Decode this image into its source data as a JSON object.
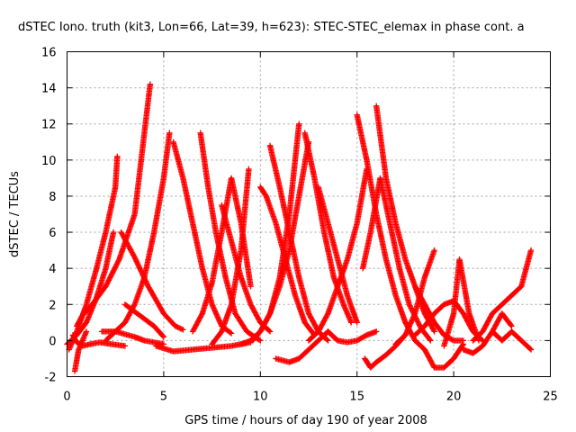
{
  "chart_data": {
    "type": "scatter",
    "title": "dSTEC Iono. truth (kit3, Lon=66, Lat=39, h=623): STEC-STEC_elemax in phase cont. a",
    "xlabel": "GPS time / hours of day 190 of year 2008",
    "ylabel": "dSTEC  / TECUs",
    "xlim": [
      0,
      25
    ],
    "ylim": [
      -2,
      16
    ],
    "xticks": [
      "0",
      "5",
      "10",
      "15",
      "20",
      "25"
    ],
    "yticks": [
      "-2",
      "0",
      "2",
      "4",
      "6",
      "8",
      "10",
      "12",
      "14",
      "16"
    ],
    "grid": true,
    "marker": "+",
    "color": "#ff0000",
    "series": [
      {
        "x": [
          0.0,
          0.5,
          1.0,
          1.5,
          2.0,
          2.4
        ],
        "y": [
          -0.2,
          0.3,
          1.0,
          2.3,
          4.0,
          6.0
        ]
      },
      {
        "x": [
          0.1,
          0.5,
          1.0,
          1.5,
          2.0,
          2.5,
          2.6
        ],
        "y": [
          -0.5,
          0.5,
          2.0,
          3.9,
          6.0,
          8.5,
          10.2
        ]
      },
      {
        "x": [
          0.3,
          0.5,
          0.8,
          1.2,
          1.7,
          2.3,
          3.0
        ],
        "y": [
          0.3,
          -0.1,
          -0.3,
          -0.2,
          -0.1,
          -0.2,
          -0.3
        ]
      },
      {
        "x": [
          0.4,
          0.6,
          1.0
        ],
        "y": [
          -1.7,
          -0.5,
          0.5
        ]
      },
      {
        "x": [
          0.5,
          0.8,
          1.3,
          2.0,
          2.7,
          3.5,
          4.3
        ],
        "y": [
          0.8,
          1.4,
          2.0,
          3.0,
          4.5,
          7.0,
          14.2
        ]
      },
      {
        "x": [
          2.8,
          3.5,
          4.2,
          5.0,
          5.6,
          6.0
        ],
        "y": [
          6.0,
          4.6,
          3.0,
          1.5,
          0.8,
          0.6
        ]
      },
      {
        "x": [
          2.0,
          2.5,
          3.0,
          3.5,
          4.0,
          4.5,
          5.0,
          5.3
        ],
        "y": [
          0.0,
          0.5,
          1.0,
          2.0,
          3.5,
          6.0,
          9.0,
          11.5
        ]
      },
      {
        "x": [
          1.8,
          2.5,
          3.5,
          4.0,
          4.5,
          5.0
        ],
        "y": [
          0.5,
          0.5,
          0.2,
          0.0,
          -0.1,
          -0.2
        ]
      },
      {
        "x": [
          3.0,
          4.0,
          4.5,
          5.0
        ],
        "y": [
          2.0,
          1.2,
          0.8,
          0.2
        ]
      },
      {
        "x": [
          5.5,
          6.0,
          6.5,
          7.0,
          7.5,
          8.0,
          8.5
        ],
        "y": [
          11.0,
          9.0,
          6.5,
          4.0,
          2.0,
          0.8,
          0.4
        ]
      },
      {
        "x": [
          4.6,
          5.5,
          6.5,
          7.5,
          8.5,
          9.5
        ],
        "y": [
          -0.3,
          -0.6,
          -0.5,
          -0.4,
          -0.3,
          -0.1
        ]
      },
      {
        "x": [
          6.5,
          7.0,
          7.5,
          8.0,
          8.5,
          9.0,
          9.5
        ],
        "y": [
          0.5,
          1.5,
          3.2,
          6.0,
          9.0,
          6.5,
          3.0
        ]
      },
      {
        "x": [
          6.9,
          7.3,
          7.7,
          8.2,
          8.7,
          9.3,
          10.0
        ],
        "y": [
          11.5,
          8.5,
          6.0,
          3.5,
          1.5,
          0.5,
          0.0
        ]
      },
      {
        "x": [
          7.5,
          8.0,
          8.5,
          9.0,
          9.4
        ],
        "y": [
          -0.2,
          0.5,
          2.0,
          5.0,
          9.5
        ]
      },
      {
        "x": [
          8.0,
          8.5,
          9.0,
          9.5,
          10.0,
          10.5
        ],
        "y": [
          7.5,
          5.5,
          3.5,
          2.0,
          1.0,
          0.5
        ]
      },
      {
        "x": [
          9.0,
          9.5,
          10.0,
          10.5,
          11.0,
          11.5,
          12.0
        ],
        "y": [
          -0.2,
          0.0,
          0.5,
          1.5,
          3.5,
          7.0,
          12.0
        ]
      },
      {
        "x": [
          9.6,
          10.0,
          10.5,
          11.0,
          11.5,
          12.0,
          12.5
        ],
        "y": [
          0.0,
          0.5,
          1.5,
          3.0,
          5.0,
          8.0,
          11.0
        ]
      },
      {
        "x": [
          10.0,
          10.3,
          10.8,
          11.3,
          11.8,
          12.3,
          12.8
        ],
        "y": [
          8.5,
          8.0,
          6.5,
          4.5,
          2.5,
          1.0,
          0.3
        ]
      },
      {
        "x": [
          10.5,
          11.0,
          11.5,
          12.0,
          12.5,
          13.0,
          13.5
        ],
        "y": [
          10.8,
          8.5,
          6.0,
          3.5,
          1.5,
          0.5,
          0.0
        ]
      },
      {
        "x": [
          10.8,
          11.5,
          12.0,
          12.5,
          13.0,
          13.5
        ],
        "y": [
          -1.0,
          -1.2,
          -1.0,
          -0.5,
          0.0,
          0.5
        ]
      },
      {
        "x": [
          12.3,
          12.8,
          13.3,
          13.8,
          14.3,
          14.7
        ],
        "y": [
          11.5,
          9.0,
          6.0,
          3.5,
          2.0,
          1.0
        ]
      },
      {
        "x": [
          13.0,
          13.5,
          14.0,
          14.5,
          15.0
        ],
        "y": [
          8.5,
          6.5,
          4.5,
          2.5,
          1.0
        ]
      },
      {
        "x": [
          12.5,
          13.0,
          13.5,
          14.0,
          14.5,
          15.0,
          15.5
        ],
        "y": [
          0.0,
          0.5,
          1.5,
          3.0,
          4.5,
          6.5,
          9.5
        ]
      },
      {
        "x": [
          13.5,
          14.0,
          14.5,
          15.0,
          15.5,
          16.0
        ],
        "y": [
          0.5,
          0.0,
          -0.1,
          0.0,
          0.3,
          0.5
        ]
      },
      {
        "x": [
          15.0,
          15.5,
          16.0,
          16.5,
          17.0,
          17.5,
          18.0,
          18.5
        ],
        "y": [
          12.5,
          10.0,
          7.0,
          4.5,
          2.5,
          1.0,
          0.0,
          -0.5
        ]
      },
      {
        "x": [
          15.4,
          15.7,
          16.0,
          16.5,
          17.0,
          17.5
        ],
        "y": [
          -1.0,
          -1.5,
          -1.2,
          -0.8,
          -0.3,
          0.3
        ]
      },
      {
        "x": [
          15.3,
          15.7,
          16.2,
          16.7,
          17.2,
          17.7,
          18.3,
          18.8
        ],
        "y": [
          4.0,
          6.0,
          9.0,
          6.5,
          4.0,
          2.0,
          0.7,
          0.0
        ]
      },
      {
        "x": [
          16.0,
          16.5,
          17.0,
          17.5,
          18.0,
          18.5,
          19.0
        ],
        "y": [
          13.0,
          9.0,
          6.5,
          4.5,
          3.0,
          1.5,
          0.5
        ]
      },
      {
        "x": [
          17.0,
          17.5,
          18.0,
          18.5,
          19.0
        ],
        "y": [
          -0.2,
          0.3,
          1.5,
          3.5,
          5.0
        ]
      },
      {
        "x": [
          18.0,
          18.5,
          19.0,
          19.5,
          20.0,
          20.5
        ],
        "y": [
          3.0,
          2.0,
          1.0,
          0.3,
          0.0,
          0.0
        ]
      },
      {
        "x": [
          18.5,
          19.0,
          19.5,
          20.0,
          20.5
        ],
        "y": [
          -0.5,
          -1.5,
          -1.5,
          -1.0,
          -0.2
        ]
      },
      {
        "x": [
          18.0,
          18.5,
          19.0,
          19.5,
          20.0,
          20.5,
          21.0,
          21.5
        ],
        "y": [
          0.3,
          0.8,
          1.5,
          2.0,
          2.2,
          1.5,
          0.5,
          0.0
        ]
      },
      {
        "x": [
          19.5,
          20.0,
          20.3,
          20.8,
          21.3
        ],
        "y": [
          -0.3,
          1.5,
          4.5,
          1.5,
          0.0
        ]
      },
      {
        "x": [
          20.5,
          21.0,
          21.5,
          22.0,
          22.5,
          23.0
        ],
        "y": [
          -0.5,
          -0.7,
          -0.3,
          0.5,
          1.5,
          0.8
        ]
      },
      {
        "x": [
          21.0,
          21.5,
          22.0,
          22.5,
          23.0,
          23.5,
          24.0
        ],
        "y": [
          0.0,
          0.5,
          1.5,
          2.0,
          2.5,
          3.0,
          5.0
        ]
      },
      {
        "x": [
          22.0,
          22.5,
          23.0,
          23.5,
          24.0
        ],
        "y": [
          0.5,
          0.0,
          0.5,
          0.0,
          -0.5
        ]
      }
    ]
  }
}
